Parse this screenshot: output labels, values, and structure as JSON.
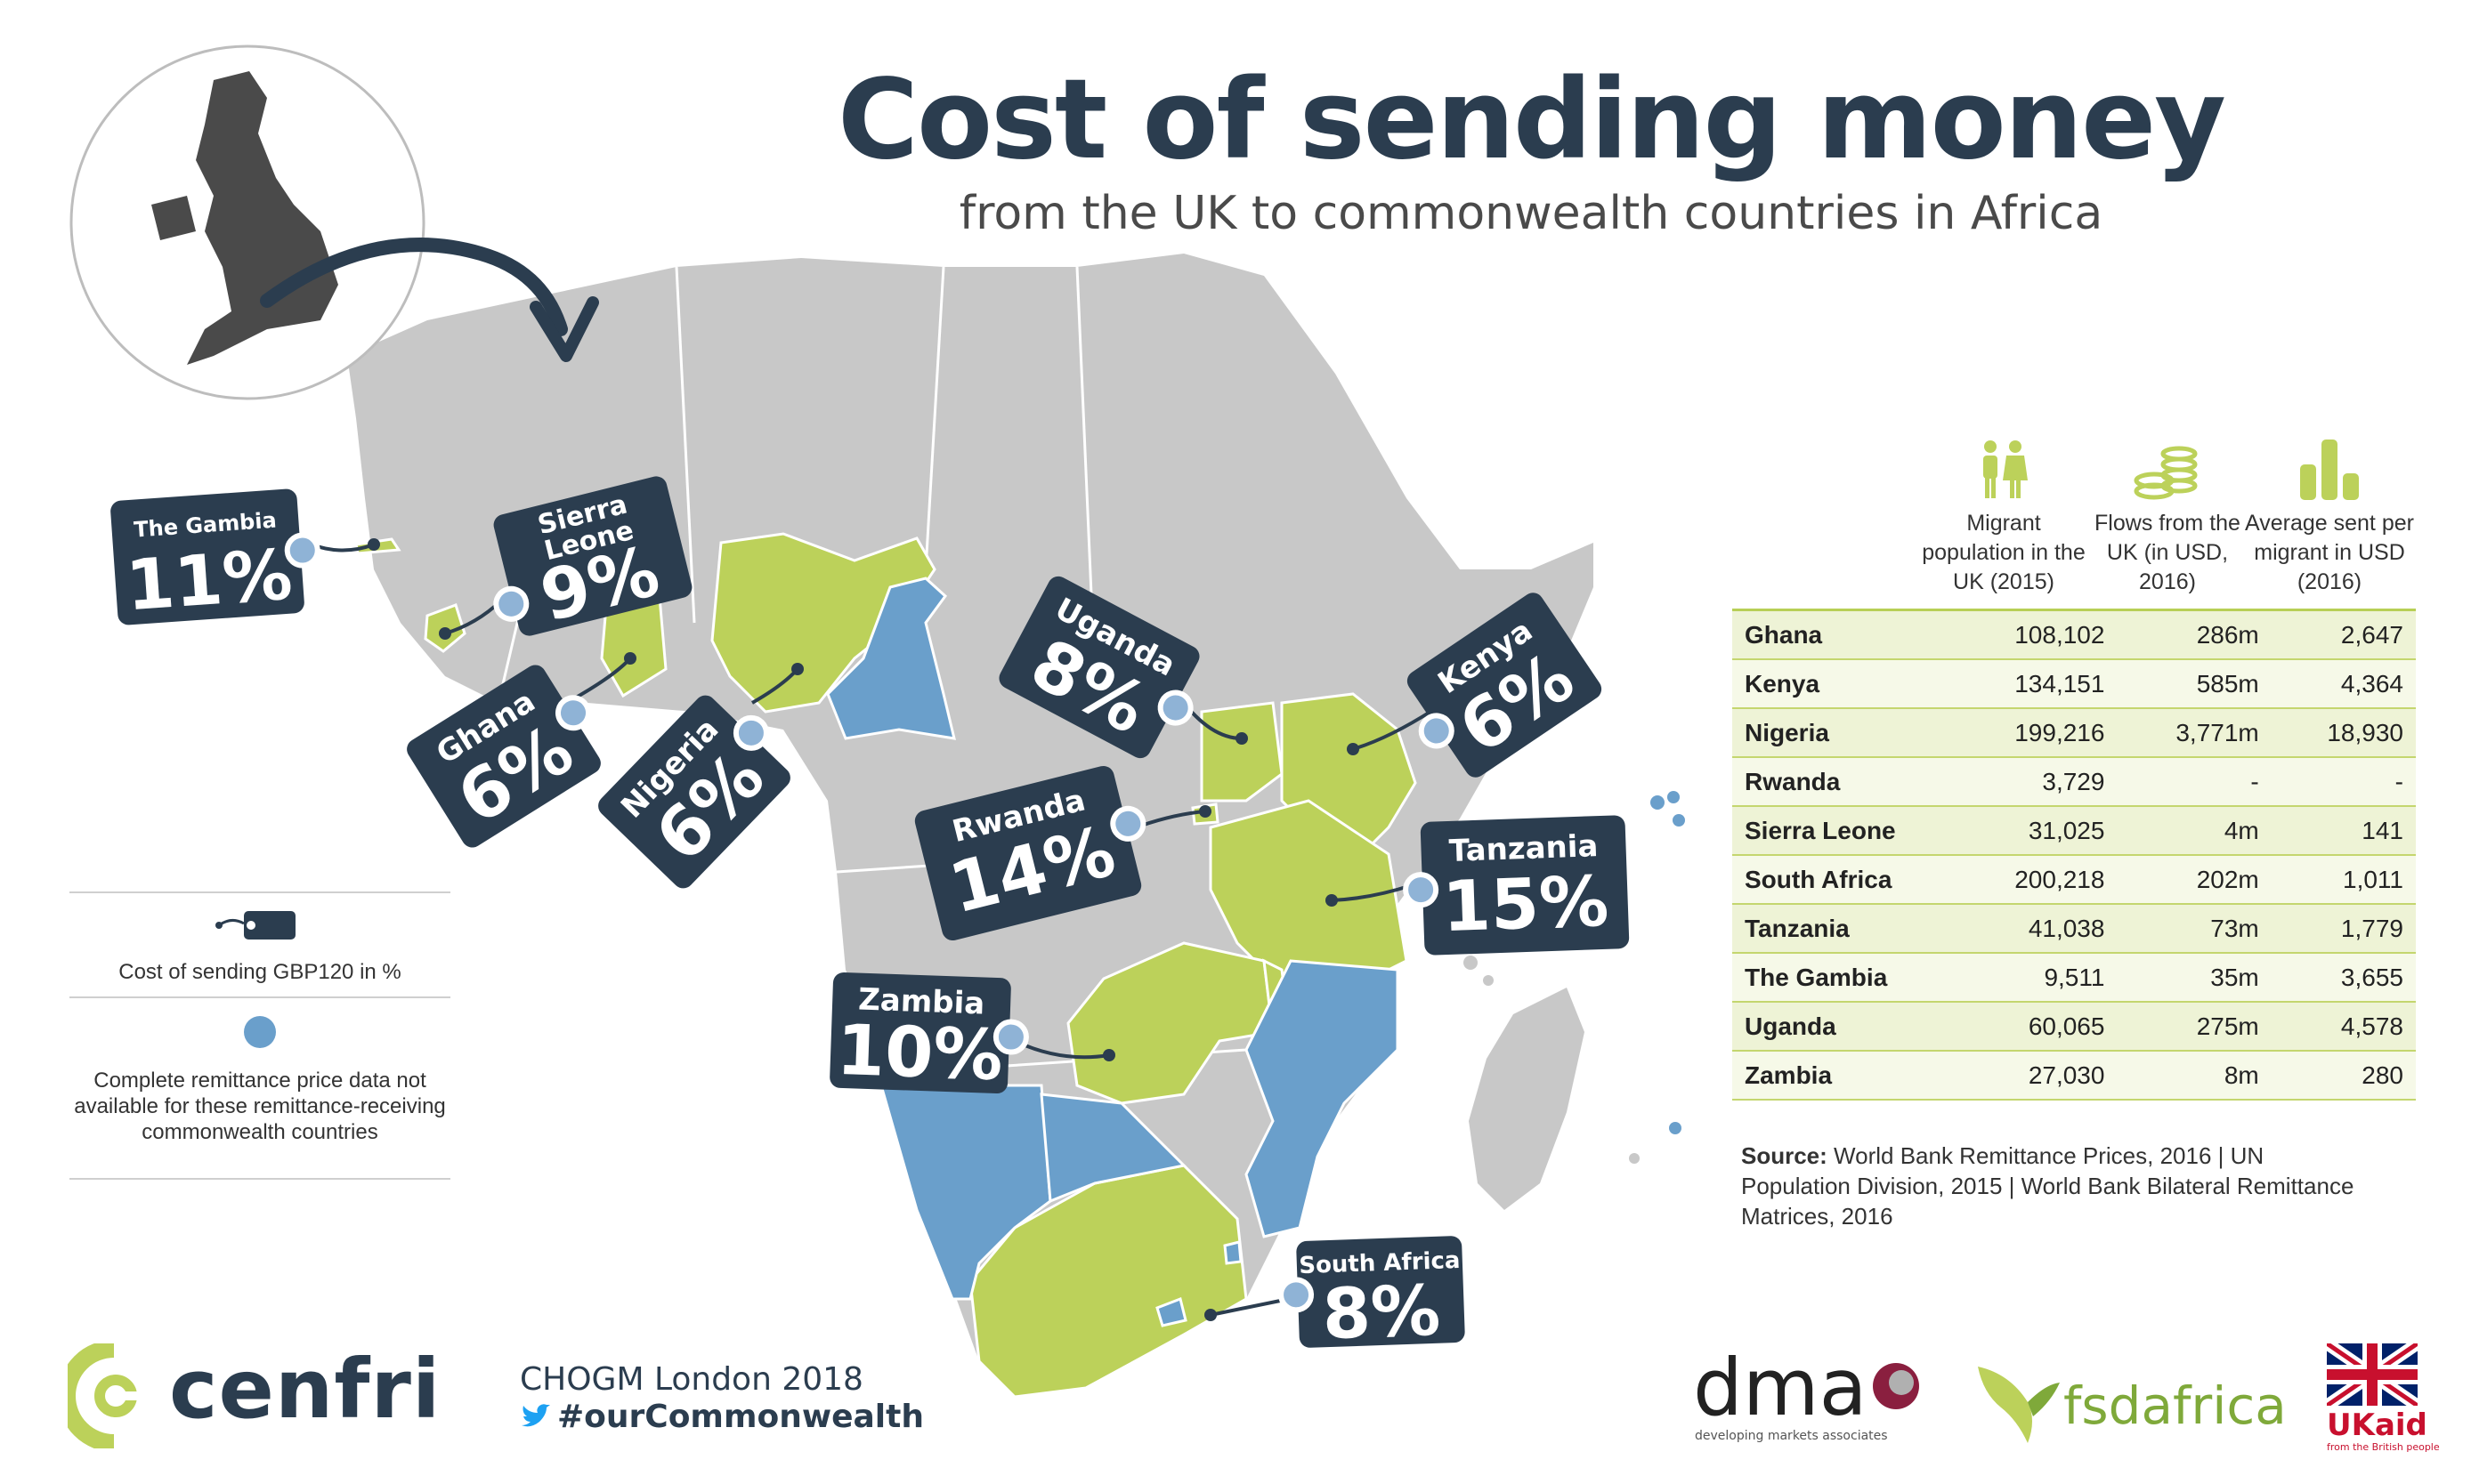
{
  "title": "Cost of sending money",
  "subtitle": "from the UK to commonwealth countries in Africa",
  "colors": {
    "navy": "#2b3d4f",
    "lime": "#bcd15a",
    "blue": "#6a9fcb",
    "grey": "#c8c8c8"
  },
  "tags": [
    {
      "country": "The Gambia",
      "pct": "11%"
    },
    {
      "country": "Sierra Leone",
      "pct": "9%"
    },
    {
      "country": "Ghana",
      "pct": "6%"
    },
    {
      "country": "Nigeria",
      "pct": "6%"
    },
    {
      "country": "Uganda",
      "pct": "8%"
    },
    {
      "country": "Kenya",
      "pct": "6%"
    },
    {
      "country": "Rwanda",
      "pct": "14%"
    },
    {
      "country": "Tanzania",
      "pct": "15%"
    },
    {
      "country": "Zambia",
      "pct": "10%"
    },
    {
      "country": "South Africa",
      "pct": "8%"
    }
  ],
  "legend": {
    "tag_label": "Cost of sending GBP120 in %",
    "dot_label": "Complete remittance price data not available for these remittance-receiving commonwealth countries"
  },
  "table": {
    "headers": [
      {
        "label": "Migrant population in the UK (2015)",
        "icon": "people-icon"
      },
      {
        "label": "Flows from the UK (in USD, 2016)",
        "icon": "coins-icon"
      },
      {
        "label": "Average sent per migrant in USD (2016)",
        "icon": "bar-chart-icon"
      }
    ],
    "rows": [
      [
        "Ghana",
        "108,102",
        "286m",
        "2,647"
      ],
      [
        "Kenya",
        "134,151",
        "585m",
        "4,364"
      ],
      [
        "Nigeria",
        "199,216",
        "3,771m",
        "18,930"
      ],
      [
        "Rwanda",
        "3,729",
        "-",
        "-"
      ],
      [
        "Sierra Leone",
        "31,025",
        "4m",
        "141"
      ],
      [
        "South Africa",
        "200,218",
        "202m",
        "1,011"
      ],
      [
        "Tanzania",
        "41,038",
        "73m",
        "1,779"
      ],
      [
        "The Gambia",
        "9,511",
        "35m",
        "3,655"
      ],
      [
        "Uganda",
        "60,065",
        "275m",
        "4,578"
      ],
      [
        "Zambia",
        "27,030",
        "8m",
        "280"
      ]
    ]
  },
  "source": {
    "label": "Source:",
    "text": "World Bank Remittance Prices, 2016 | UN Population Division, 2015 | World Bank Bilateral Remittance Matrices, 2016"
  },
  "footer": {
    "cenfri": "cenfri",
    "event": "CHOGM London 2018",
    "hashtag": "#ourCommonwealth",
    "dma": "dma",
    "dma_tagline": "developing markets associates",
    "fsd": "fsdafrica",
    "ukaid": "UKaid",
    "ukaid_tagline": "from the British people"
  }
}
